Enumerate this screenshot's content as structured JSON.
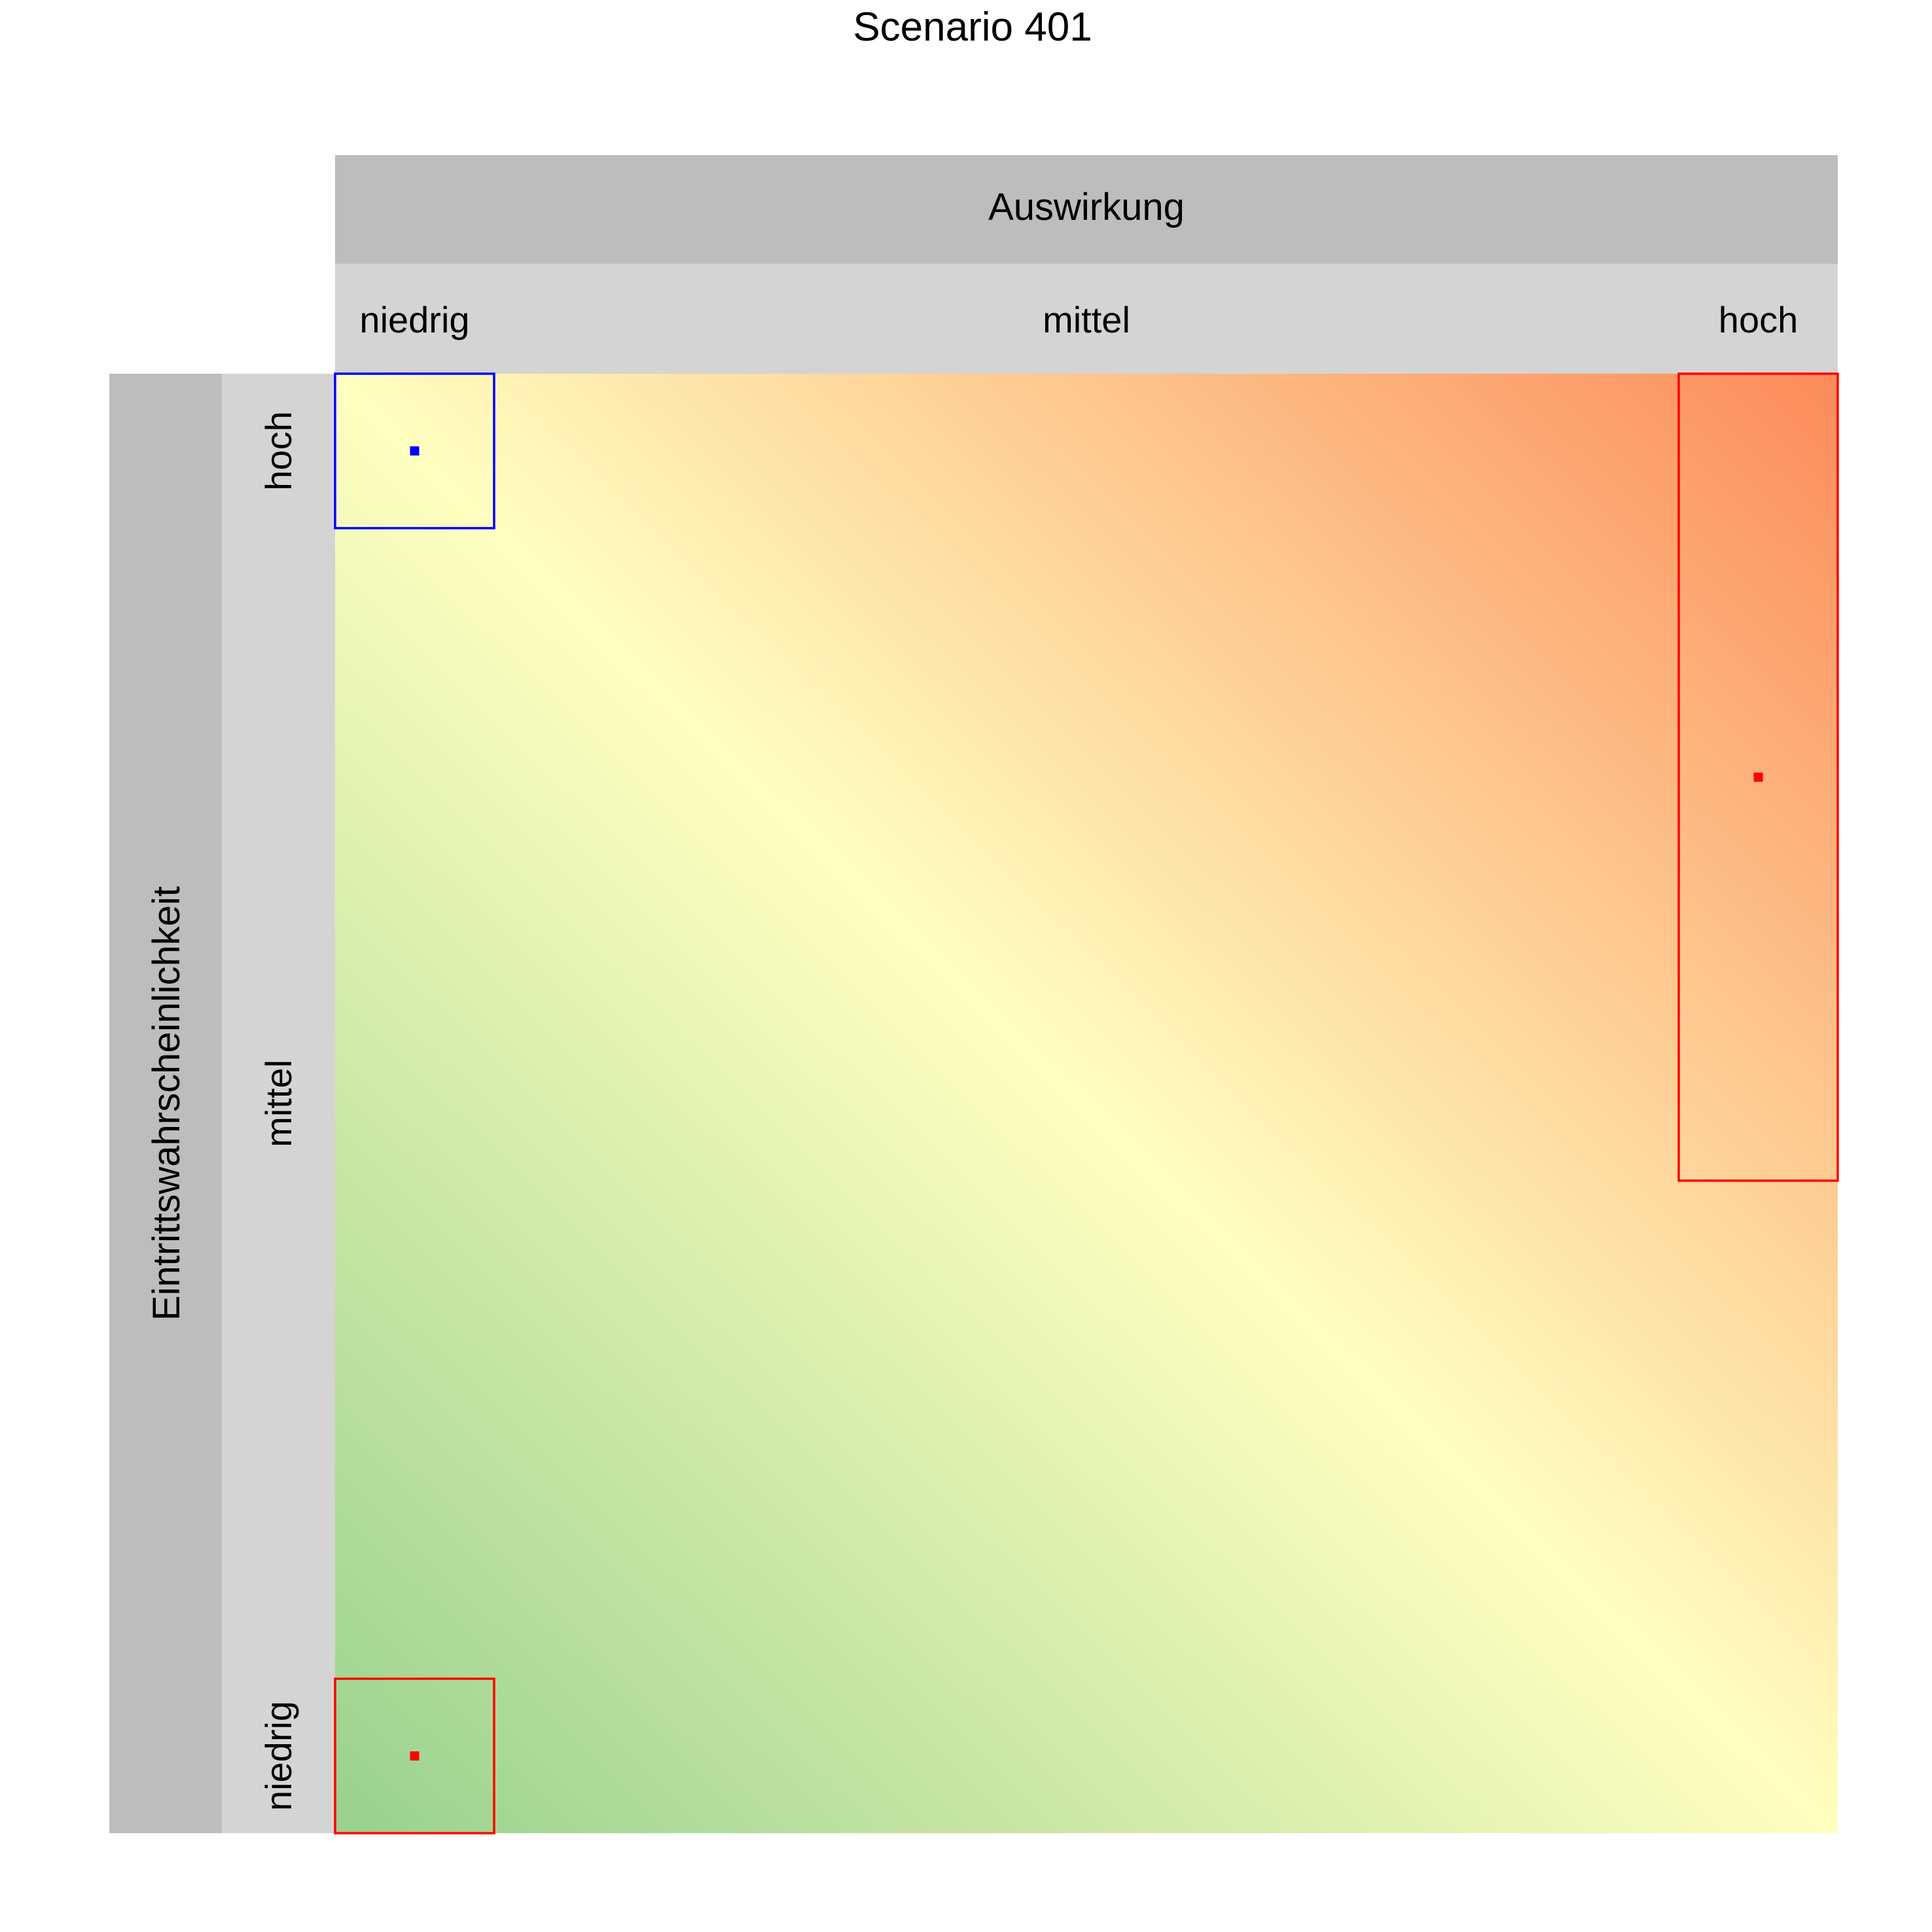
{
  "chart_data": {
    "type": "heatmap",
    "title": "Scenario 401",
    "x_axis": {
      "title": "Auswirkung",
      "categories": [
        "niedrig",
        "mittel",
        "hoch"
      ]
    },
    "y_axis": {
      "title": "Eintrittswahrscheinlichkeit",
      "categories": [
        "niedrig",
        "mittel",
        "hoch"
      ]
    },
    "gradient_colors": {
      "low": "#98d18e",
      "mid": "#ffffc0",
      "high": "#fc8b5a"
    },
    "regions": [
      {
        "impact": [
          "niedrig",
          "niedrig"
        ],
        "likelihood": [
          "hoch",
          "hoch"
        ],
        "marker": [
          "niedrig",
          "hoch"
        ],
        "color": "#0000ff"
      },
      {
        "impact": [
          "hoch",
          "hoch"
        ],
        "likelihood": [
          "mittel",
          "hoch"
        ],
        "marker": [
          "hoch",
          "hoch"
        ],
        "color": "#ff0000"
      },
      {
        "impact": [
          "niedrig",
          "niedrig"
        ],
        "likelihood": [
          "niedrig",
          "niedrig"
        ],
        "marker": [
          "niedrig",
          "niedrig"
        ],
        "color": "#ff0000"
      }
    ]
  }
}
